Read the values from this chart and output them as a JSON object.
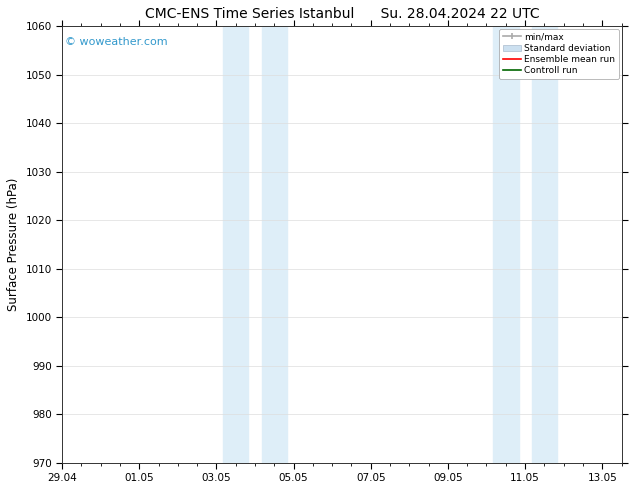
{
  "title_left": "CMC-ENS Time Series Istanbul",
  "title_right": "Su. 28.04.2024 22 UTC",
  "ylabel": "Surface Pressure (hPa)",
  "xlim": [
    0,
    14.5
  ],
  "ylim": [
    970,
    1060
  ],
  "yticks": [
    970,
    980,
    990,
    1000,
    1010,
    1020,
    1030,
    1040,
    1050,
    1060
  ],
  "xtick_labels": [
    "29.04",
    "01.05",
    "03.05",
    "05.05",
    "07.05",
    "09.05",
    "11.05",
    "13.05"
  ],
  "xtick_positions": [
    0,
    2,
    4,
    6,
    8,
    10,
    12,
    14
  ],
  "background_color": "#ffffff",
  "plot_bg_color": "#ffffff",
  "shade_regions": [
    {
      "xmin": 4.17,
      "xmax": 4.83,
      "color": "#deeef8"
    },
    {
      "xmin": 5.17,
      "xmax": 5.83,
      "color": "#deeef8"
    },
    {
      "xmin": 11.17,
      "xmax": 11.83,
      "color": "#deeef8"
    },
    {
      "xmin": 12.17,
      "xmax": 12.83,
      "color": "#deeef8"
    }
  ],
  "watermark_text": "© woweather.com",
  "watermark_color": "#3399cc",
  "legend_labels": [
    "min/max",
    "Standard deviation",
    "Ensemble mean run",
    "Controll run"
  ],
  "legend_colors": [
    "#aaaaaa",
    "#cce0f0",
    "#ff0000",
    "#006600"
  ],
  "title_fontsize": 10,
  "tick_fontsize": 7.5,
  "ylabel_fontsize": 8.5,
  "grid_color": "#dddddd",
  "spine_color": "#333333",
  "minor_tick_color": "#333333"
}
